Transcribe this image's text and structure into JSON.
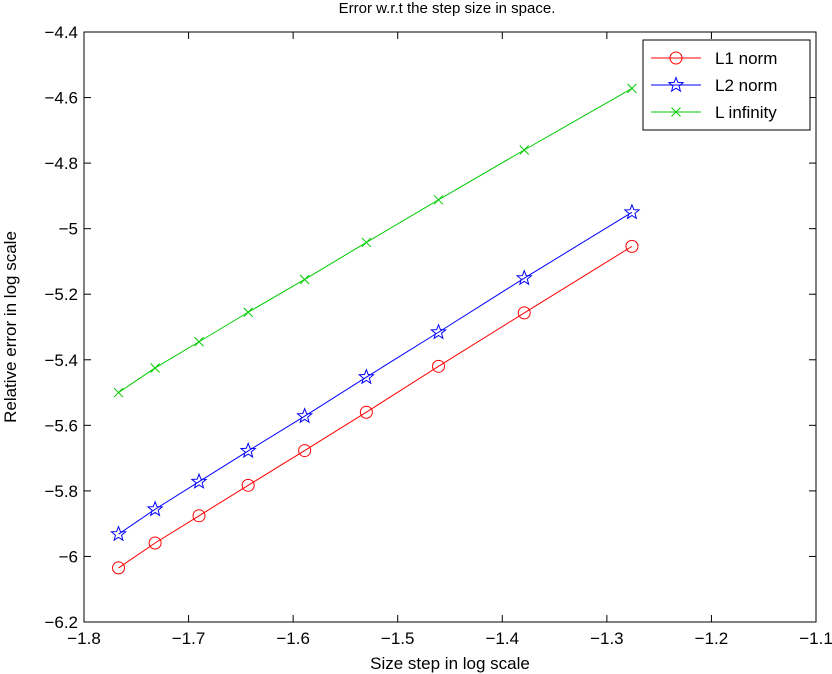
{
  "chart_data": {
    "type": "line",
    "title": "Error w.r.t the step size in space.",
    "xlabel": "Size step in log scale",
    "ylabel": "Relative error in log scale",
    "xlim": [
      -1.8,
      -1.1
    ],
    "ylim": [
      -6.2,
      -4.4
    ],
    "xticks": [
      "−1.8",
      "−1.7",
      "−1.6",
      "−1.5",
      "−1.4",
      "−1.3",
      "−1.2",
      "−1.1"
    ],
    "yticks": [
      "−6.2",
      "−6",
      "−5.8",
      "−5.6",
      "−5.4",
      "−5.2",
      "−5",
      "−4.8",
      "−4.6",
      "−4.4"
    ],
    "grid": false,
    "legend_position": "top-right",
    "x": [
      -1.767,
      -1.732,
      -1.69,
      -1.643,
      -1.589,
      -1.53,
      -1.461,
      -1.379,
      -1.276
    ],
    "series": [
      {
        "name": "L1 norm",
        "color": "#ff0000",
        "marker": "circle",
        "values": [
          -6.035,
          -5.959,
          -5.876,
          -5.783,
          -5.677,
          -5.56,
          -5.42,
          -5.257,
          -5.054
        ]
      },
      {
        "name": "L2 norm",
        "color": "#0000ff",
        "marker": "star",
        "values": [
          -5.932,
          -5.856,
          -5.772,
          -5.678,
          -5.572,
          -5.453,
          -5.316,
          -5.151,
          -4.95
        ]
      },
      {
        "name": "L infinity",
        "color": "#00cc00",
        "marker": "x",
        "values": [
          -5.5,
          -5.425,
          -5.345,
          -5.255,
          -5.155,
          -5.042,
          -4.912,
          -4.76,
          -4.572
        ]
      }
    ]
  }
}
